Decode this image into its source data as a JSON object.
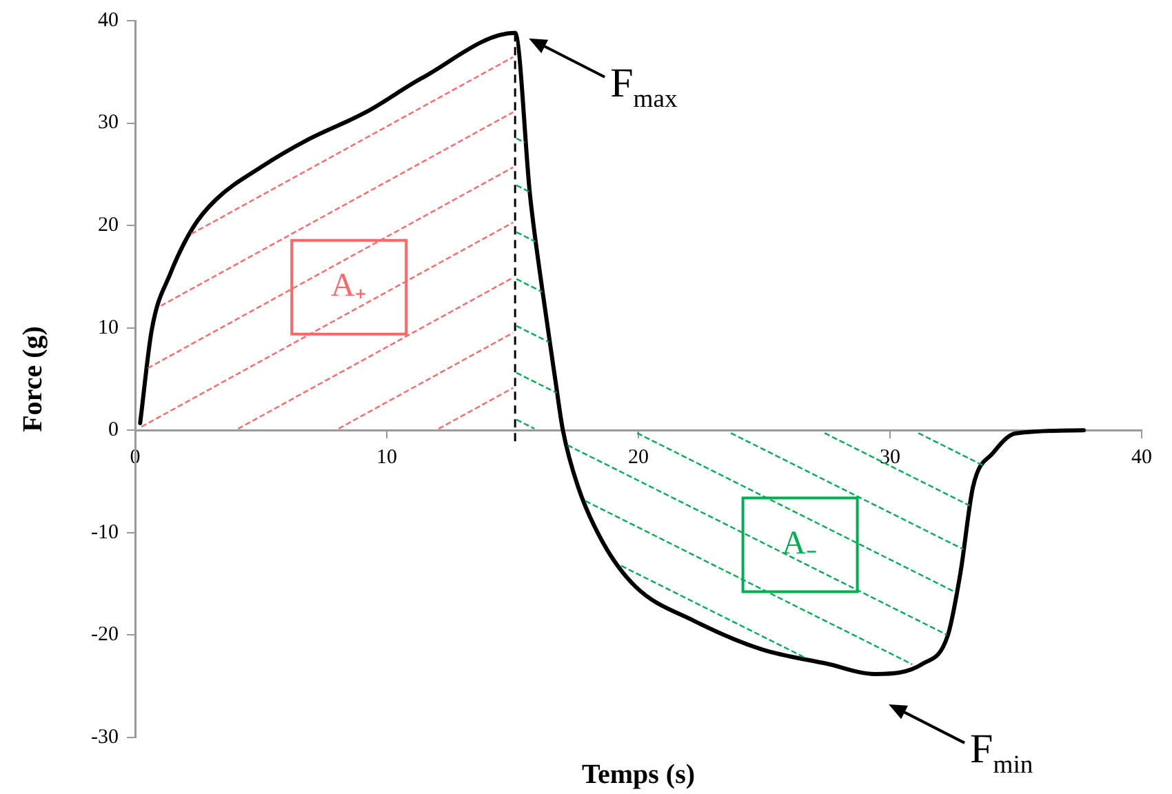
{
  "chart_data": {
    "type": "line",
    "xlabel": "Temps (s)",
    "ylabel": "Force (g)",
    "xlim": [
      0,
      40
    ],
    "xticks": [
      0,
      10,
      20,
      30,
      40
    ],
    "ylim": [
      -30,
      40
    ],
    "yticks": [
      -30,
      -20,
      -10,
      0,
      10,
      20,
      30,
      40
    ],
    "series": [
      {
        "color": "#000000",
        "x": [
          0.2,
          0.66,
          1.4,
          2.3,
          3.2,
          5.0,
          6.8,
          9.2,
          11.4,
          15.1,
          15.7,
          16.2,
          16.7,
          17.0,
          17.6,
          18.6,
          19.9,
          22.2,
          24.9,
          27.5,
          29.4,
          31.3,
          32.3,
          32.8,
          33.3,
          34.1,
          35.0,
          37.7
        ],
        "values": [
          0.7,
          9.8,
          15.3,
          19.8,
          22.5,
          25.7,
          28.3,
          31.1,
          34.4,
          38.8,
          22.8,
          13.4,
          4.9,
          0,
          -5.5,
          -11,
          -15.3,
          -18.6,
          -21.4,
          -22.8,
          -23.8,
          -22.8,
          -20,
          -13.9,
          -5.5,
          -2.2,
          -0.3,
          0
        ]
      }
    ],
    "ref_lines": [
      {
        "axis": "x",
        "value": 15.1,
        "color": "#000000",
        "line_style": "dashed"
      }
    ],
    "annotations": [
      {
        "text": "F$_{max}$",
        "x": 15.1,
        "y": 38.8
      },
      {
        "text": "F$_{min}$",
        "x": 29.4,
        "y": -23.8
      },
      "A₊",
      "A₋"
    ],
    "grid": false,
    "legend": false,
    "marker": "none",
    "line_style": "solid"
  }
}
